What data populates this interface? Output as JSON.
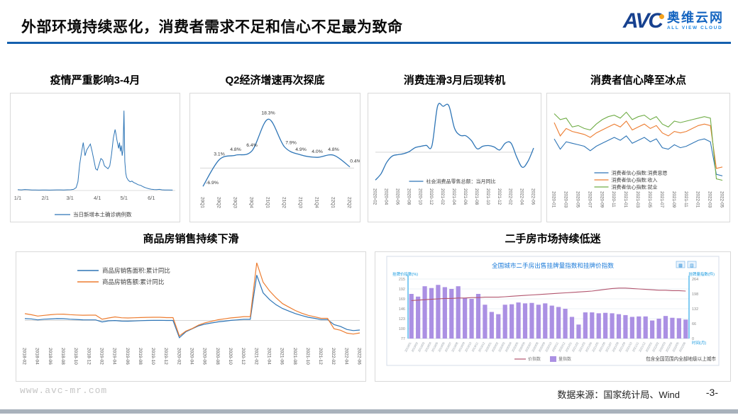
{
  "slide": {
    "title": "外部环境持续恶化，消费者需求不足和信心不足最为致命",
    "logo": {
      "avc": "AVC",
      "cn": "奥维云网",
      "en": "ALL VIEW CLOUD"
    },
    "footer": {
      "website": "www.avc-mr.com",
      "source": "数据来源：国家统计局、Wind",
      "page": "-3-"
    },
    "accent_color": "#1460ae"
  },
  "chart_data": [
    {
      "id": "covid-daily-cases",
      "type": "line",
      "title": "疫情严重影响3-4月",
      "legend": [
        "当日新增本土确诊病例数"
      ],
      "color": "#2e75b6",
      "x_ticks": [
        "1/1",
        "2/1",
        "3/1",
        "4/1",
        "5/1",
        "6/1"
      ],
      "tick_days": [
        0,
        31,
        59,
        90,
        120,
        151
      ],
      "x": [
        0,
        4,
        8,
        12,
        16,
        20,
        24,
        28,
        32,
        36,
        40,
        44,
        48,
        52,
        56,
        60,
        63,
        66,
        68,
        70,
        72,
        74,
        76,
        78,
        80,
        82,
        84,
        86,
        88,
        90,
        92,
        94,
        96,
        98,
        100,
        102,
        104,
        106,
        108,
        110,
        111,
        112,
        113,
        114,
        115,
        116,
        117,
        118,
        119,
        120,
        121,
        122,
        123,
        125,
        127,
        129,
        131,
        133,
        136,
        139,
        142,
        145,
        148,
        151,
        154,
        157,
        160,
        163,
        166,
        170,
        175
      ],
      "values": [
        60,
        45,
        70,
        55,
        40,
        35,
        30,
        40,
        35,
        30,
        38,
        42,
        45,
        40,
        50,
        55,
        80,
        200,
        600,
        1800,
        2600,
        3300,
        2400,
        2800,
        3000,
        3200,
        2700,
        2100,
        1500,
        1400,
        1800,
        2200,
        2100,
        1700,
        1600,
        1500,
        1700,
        2500,
        3600,
        4200,
        3900,
        3500,
        3200,
        2900,
        3300,
        2700,
        3100,
        2400,
        2800,
        5500,
        2000,
        1200,
        900,
        700,
        600,
        650,
        550,
        500,
        400,
        350,
        250,
        180,
        120,
        90,
        70,
        60,
        80,
        50,
        40,
        35,
        30
      ],
      "ylim": [
        0,
        6000
      ]
    },
    {
      "id": "gdp-growth",
      "type": "line",
      "title": "Q2经济增速再次探底",
      "color": "#2e75b6",
      "categories": [
        "20Q1",
        "20Q2",
        "20Q3",
        "20Q4",
        "21Q1",
        "21Q2",
        "21Q3",
        "21Q4",
        "22Q1",
        "22Q2"
      ],
      "values": [
        -6.9,
        3.1,
        4.8,
        6.4,
        18.3,
        7.9,
        4.9,
        4.0,
        4.8,
        0.4
      ],
      "labels": [
        "-6.9%",
        "3.1%",
        "4.8%",
        "6.4%",
        "18.3%",
        "7.9%",
        "4.9%",
        "4.0%",
        "4.8%",
        "0.4%"
      ],
      "ylim": [
        -9.5,
        20.5
      ]
    },
    {
      "id": "retail-sales-yoy",
      "type": "line",
      "title": "消费连滑3月后现转机",
      "legend": [
        "社会消费品零售总额：当月同比"
      ],
      "color": "#2e75b6",
      "months": [
        "2020-02",
        "2020-03",
        "2020-04",
        "2020-05",
        "2020-06",
        "2020-07",
        "2020-08",
        "2020-09",
        "2020-10",
        "2020-11",
        "2020-12",
        "2021-01",
        "2021-02",
        "2021-03",
        "2021-04",
        "2021-05",
        "2021-06",
        "2021-07",
        "2021-08",
        "2021-09",
        "2021-10",
        "2021-11",
        "2021-12",
        "2022-01",
        "2022-02",
        "2022-03",
        "2022-04",
        "2022-05",
        "2022-06"
      ],
      "values": [
        -20.5,
        -15.8,
        -7.5,
        -2.8,
        -1.8,
        -1.1,
        0.5,
        3.3,
        4.3,
        5.0,
        4.6,
        33.8,
        33.8,
        34.2,
        17.7,
        12.4,
        12.1,
        8.5,
        2.5,
        4.4,
        4.9,
        3.9,
        1.7,
        6.7,
        6.7,
        -3.5,
        -11.1,
        -6.7,
        3.1
      ],
      "ylim": [
        -24,
        38
      ]
    },
    {
      "id": "consumer-confidence",
      "type": "line",
      "title": "消费者信心降至冰点",
      "months": [
        "2020-01",
        "2020-02",
        "2020-03",
        "2020-04",
        "2020-05",
        "2020-06",
        "2020-07",
        "2020-08",
        "2020-09",
        "2020-10",
        "2020-11",
        "2020-12",
        "2021-01",
        "2021-02",
        "2021-03",
        "2021-04",
        "2021-05",
        "2021-06",
        "2021-07",
        "2021-08",
        "2021-09",
        "2021-10",
        "2021-11",
        "2021-12",
        "2022-01",
        "2022-02",
        "2022-03",
        "2022-04",
        "2022-05"
      ],
      "series": [
        {
          "name": "消费者信心指数:消费意愿",
          "color": "#2e75b6",
          "values": [
            111,
            104,
            109,
            108,
            107,
            106,
            103,
            106,
            108,
            110,
            112,
            110,
            113,
            108,
            110,
            112,
            109,
            111,
            105,
            104,
            107,
            105,
            106,
            108,
            110,
            111,
            109,
            87,
            86
          ]
        },
        {
          "name": "消费者信心指数:收入",
          "color": "#ed7d31",
          "values": [
            122,
            113,
            118,
            116,
            115,
            114,
            112,
            115,
            117,
            119,
            121,
            119,
            123,
            117,
            119,
            121,
            118,
            120,
            115,
            113,
            116,
            115,
            116,
            118,
            120,
            121,
            120,
            91,
            92
          ]
        },
        {
          "name": "消费者信心指数:就业",
          "color": "#70ad47",
          "values": [
            128,
            124,
            125,
            119,
            120,
            118,
            117,
            121,
            124,
            126,
            127,
            125,
            129,
            124,
            126,
            127,
            124,
            126,
            121,
            119,
            123,
            122,
            123,
            124,
            125,
            126,
            125,
            84,
            83
          ]
        }
      ],
      "ylim": [
        78,
        134
      ]
    },
    {
      "id": "housing-sales",
      "type": "line",
      "title": "商品房销售持续下滑",
      "months": [
        "2018-02",
        "2018-03",
        "2018-04",
        "2018-05",
        "2018-06",
        "2018-07",
        "2018-08",
        "2018-09",
        "2018-10",
        "2018-11",
        "2018-12",
        "2019-01",
        "2019-02",
        "2019-03",
        "2019-04",
        "2019-05",
        "2019-06",
        "2019-07",
        "2019-08",
        "2019-09",
        "2019-10",
        "2019-11",
        "2019-12",
        "2020-01",
        "2020-02",
        "2020-03",
        "2020-04",
        "2020-05",
        "2020-06",
        "2020-07",
        "2020-08",
        "2020-09",
        "2020-10",
        "2020-11",
        "2020-12",
        "2021-01",
        "2021-02",
        "2021-03",
        "2021-04",
        "2021-05",
        "2021-06",
        "2021-07",
        "2021-08",
        "2021-09",
        "2021-10",
        "2021-11",
        "2021-12",
        "2022-01",
        "2022-02",
        "2022-03",
        "2022-04",
        "2022-05",
        "2022-06"
      ],
      "series": [
        {
          "name": "商品房销售面积:累计同比",
          "color": "#2e75b6",
          "values": [
            4.1,
            3.6,
            1.3,
            2.9,
            3.3,
            4.2,
            4.0,
            2.9,
            2.2,
            1.4,
            1.3,
            1.3,
            -3.6,
            -0.9,
            -0.3,
            -1.6,
            -1.8,
            -1.3,
            -0.6,
            -0.1,
            0.1,
            0.2,
            -0.1,
            -0.1,
            -39.9,
            -26.3,
            -19.3,
            -12.3,
            -8.4,
            -5.8,
            -3.3,
            -1.8,
            0.0,
            1.3,
            2.6,
            2.6,
            104.9,
            63.8,
            48.1,
            36.3,
            27.7,
            21.5,
            15.9,
            11.3,
            7.3,
            4.8,
            1.9,
            1.9,
            -9.6,
            -13.8,
            -20.9,
            -23.6,
            -22.2
          ]
        },
        {
          "name": "商品房销售额:累计同比",
          "color": "#ed7d31",
          "values": [
            15.7,
            13.2,
            10.0,
            11.8,
            13.2,
            14.4,
            14.5,
            13.3,
            12.5,
            12.1,
            12.2,
            12.2,
            2.8,
            5.6,
            8.1,
            6.1,
            5.6,
            6.2,
            6.7,
            7.1,
            7.3,
            7.3,
            6.5,
            6.5,
            -35.9,
            -24.7,
            -18.6,
            -10.6,
            -5.4,
            -2.1,
            1.6,
            3.7,
            5.8,
            7.2,
            8.7,
            8.7,
            133.4,
            88.5,
            68.2,
            52.4,
            38.9,
            30.7,
            22.8,
            16.6,
            11.8,
            8.5,
            4.8,
            4.8,
            -19.3,
            -22.7,
            -29.5,
            -31.5,
            -28.9
          ]
        }
      ],
      "ylim": [
        -55,
        145
      ]
    },
    {
      "id": "secondhand-housing",
      "type": "bar",
      "title": "二手房市场持续低迷",
      "inner_title": "全国城市二手房出售挂牌量指数和挂牌价指数",
      "left_axis": {
        "label": "挂牌价指数(%)",
        "ticks": [
          215,
          192,
          169,
          146,
          123,
          100,
          77
        ],
        "range": [
          77,
          215
        ]
      },
      "right_axis": {
        "label": "挂牌量指数(件)",
        "ticks": [
          264,
          198,
          132,
          66,
          0
        ],
        "range": [
          0,
          264
        ]
      },
      "x_label": "时间(月)",
      "note": "包含全国范围内全部地级以上城市",
      "legend": [
        {
          "name": "价指数",
          "type": "line",
          "color": "#b2556e"
        },
        {
          "name": "量指数",
          "type": "bar",
          "color": "#ab90e3"
        }
      ],
      "months": [
        "2019/01",
        "2019/02",
        "2019/03",
        "2019/04",
        "2019/05",
        "2019/06",
        "2019/07",
        "2019/08",
        "2019/09",
        "2019/10",
        "2019/11",
        "2019/12",
        "2020/01",
        "2020/02",
        "2020/03",
        "2020/04",
        "2020/05",
        "2020/06",
        "2020/07",
        "2020/08",
        "2020/09",
        "2020/10",
        "2020/11",
        "2020/12",
        "2021/01",
        "2021/02",
        "2021/03",
        "2021/04",
        "2021/05",
        "2021/06",
        "2021/07",
        "2021/08",
        "2021/09",
        "2021/10",
        "2021/11",
        "2021/12",
        "2022/01",
        "2022/02",
        "2022/03",
        "2022/04",
        "2022/05",
        "2022/06"
      ],
      "bar_values": [
        198,
        186,
        232,
        224,
        238,
        228,
        220,
        232,
        180,
        176,
        198,
        150,
        118,
        108,
        150,
        152,
        160,
        156,
        158,
        150,
        156,
        146,
        140,
        132,
        96,
        62,
        116,
        116,
        112,
        114,
        112,
        108,
        104,
        96,
        98,
        98,
        80,
        88,
        100,
        92,
        90,
        84
      ],
      "line_values": [
        165,
        166,
        167,
        168,
        169,
        170,
        170,
        171,
        171,
        172,
        172,
        173,
        173,
        173,
        174,
        175,
        176,
        177,
        178,
        179,
        180,
        181,
        182,
        183,
        184,
        185,
        186,
        187,
        189,
        191,
        193,
        194,
        194,
        193,
        192,
        191,
        190,
        189,
        189,
        188,
        188,
        187
      ]
    }
  ]
}
